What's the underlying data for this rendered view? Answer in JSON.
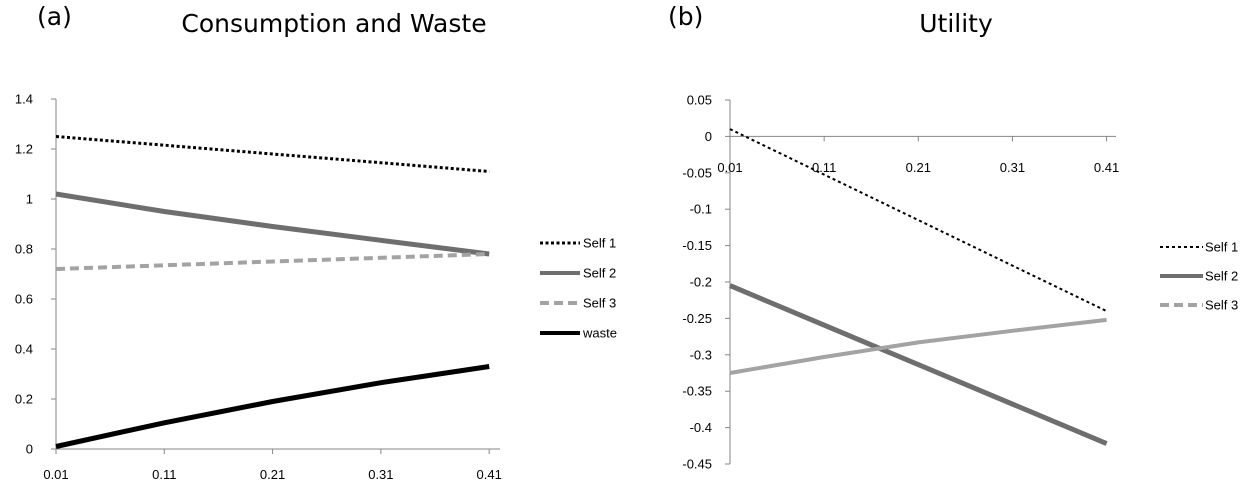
{
  "panel_a": {
    "letter": "(a)",
    "title": "Consumption and Waste"
  },
  "panel_b": {
    "letter": "(b)",
    "title": "Utility"
  },
  "chart_data": [
    {
      "type": "line",
      "title": "Consumption and Waste",
      "x": [
        0.01,
        0.41
      ],
      "xticks": [
        "0.01",
        "0.11",
        "0.21",
        "0.31",
        "0.41"
      ],
      "yticks": [
        "0",
        "0.2",
        "0.4",
        "0.6",
        "0.8",
        "1",
        "1.2",
        "1.4"
      ],
      "xlim": [
        0.01,
        0.42
      ],
      "ylim": [
        0,
        1.4
      ],
      "grid": false,
      "legend_position": "right",
      "series": [
        {
          "name": "Self 1",
          "style": "dotted",
          "color": "#000000",
          "width": 3,
          "points": [
            [
              0.01,
              1.25
            ],
            [
              0.11,
              1.215
            ],
            [
              0.21,
              1.18
            ],
            [
              0.31,
              1.145
            ],
            [
              0.41,
              1.11
            ]
          ]
        },
        {
          "name": "Self 2",
          "style": "solid",
          "color": "#6e6e6e",
          "width": 5,
          "points": [
            [
              0.01,
              1.02
            ],
            [
              0.11,
              0.95
            ],
            [
              0.21,
              0.89
            ],
            [
              0.31,
              0.835
            ],
            [
              0.41,
              0.78
            ]
          ]
        },
        {
          "name": "Self 3",
          "style": "dashed",
          "color": "#a3a3a3",
          "width": 4,
          "legend_style": "dashed",
          "points": [
            [
              0.01,
              0.72
            ],
            [
              0.11,
              0.735
            ],
            [
              0.21,
              0.75
            ],
            [
              0.31,
              0.765
            ],
            [
              0.41,
              0.78
            ]
          ]
        },
        {
          "name": "waste",
          "style": "solid",
          "color": "#000000",
          "width": 5,
          "points": [
            [
              0.01,
              0.01
            ],
            [
              0.11,
              0.105
            ],
            [
              0.21,
              0.19
            ],
            [
              0.31,
              0.265
            ],
            [
              0.41,
              0.33
            ]
          ]
        }
      ]
    },
    {
      "type": "line",
      "title": "Utility",
      "x": [
        0.01,
        0.41
      ],
      "xticks": [
        "0.01",
        "0.11",
        "0.21",
        "0.31",
        "0.41"
      ],
      "yticks": [
        "0.05",
        "0",
        "-0.05",
        "-0.1",
        "-0.15",
        "-0.2",
        "-0.25",
        "-0.3",
        "-0.35",
        "-0.4",
        "-0.45"
      ],
      "xlim": [
        0.01,
        0.42
      ],
      "ylim": [
        -0.45,
        0.05
      ],
      "x_axis_at": 0,
      "grid": false,
      "legend_position": "right",
      "series": [
        {
          "name": "Self 1",
          "style": "dotted",
          "color": "#000000",
          "width": 2,
          "points": [
            [
              0.01,
              0.01
            ],
            [
              0.41,
              -0.24
            ]
          ]
        },
        {
          "name": "Self 2",
          "style": "solid",
          "color": "#6e6e6e",
          "width": 5,
          "points": [
            [
              0.01,
              -0.205
            ],
            [
              0.41,
              -0.422
            ]
          ]
        },
        {
          "name": "Self 3",
          "style": "solid",
          "color": "#a3a3a3",
          "width": 4,
          "legend_style": "dashed",
          "points": [
            [
              0.01,
              -0.325
            ],
            [
              0.11,
              -0.303
            ],
            [
              0.21,
              -0.283
            ],
            [
              0.31,
              -0.267
            ],
            [
              0.41,
              -0.252
            ]
          ]
        }
      ]
    }
  ]
}
